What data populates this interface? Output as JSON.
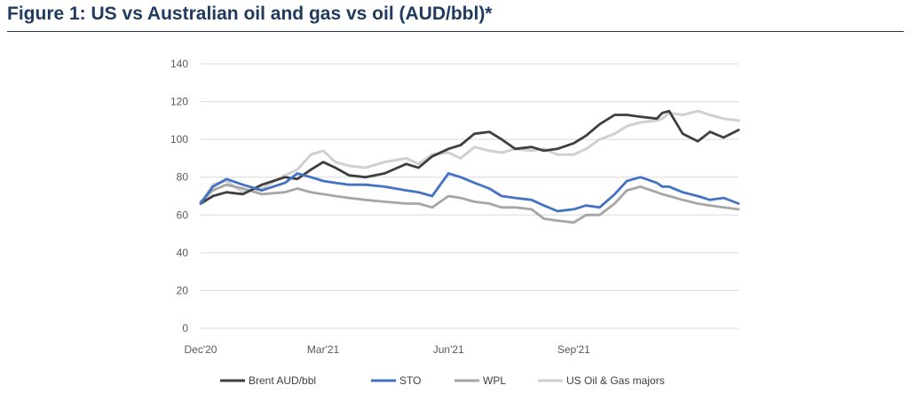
{
  "figure": {
    "title": "Figure 1: US vs Australian oil and gas vs oil (AUD/bbl)*"
  },
  "chart_data": {
    "type": "line",
    "title": "Figure 1: US vs Australian oil and gas vs oil (AUD/bbl)*",
    "xlabel": "",
    "ylabel": "",
    "ylim": [
      0,
      140
    ],
    "y_ticks": [
      "0",
      "20",
      "40",
      "60",
      "80",
      "100",
      "120",
      "140"
    ],
    "x_ticks": [
      "Dec'20",
      "Mar'21",
      "Jun'21",
      "Sep'21"
    ],
    "xlim": [
      "2020-12-01",
      "2021-12-31"
    ],
    "grid": "horizontal",
    "legend_position": "bottom",
    "series": [
      {
        "name": "Brent AUD/bbl",
        "color": "#3f3f3f",
        "x": [
          "2020-12-01",
          "2020-12-10",
          "2020-12-20",
          "2021-01-01",
          "2021-01-15",
          "2021-02-01",
          "2021-02-10",
          "2021-02-20",
          "2021-03-01",
          "2021-03-10",
          "2021-03-20",
          "2021-04-01",
          "2021-04-15",
          "2021-05-01",
          "2021-05-10",
          "2021-05-20",
          "2021-06-01",
          "2021-06-10",
          "2021-06-20",
          "2021-07-01",
          "2021-07-10",
          "2021-07-20",
          "2021-08-01",
          "2021-08-10",
          "2021-08-20",
          "2021-09-01",
          "2021-09-10",
          "2021-09-20",
          "2021-10-01",
          "2021-10-10",
          "2021-10-20",
          "2021-11-01",
          "2021-11-05",
          "2021-11-10",
          "2021-11-20",
          "2021-12-01",
          "2021-12-10",
          "2021-12-20",
          "2021-12-31"
        ],
        "y": [
          66,
          70,
          72,
          71,
          76,
          80,
          79,
          84,
          88,
          85,
          81,
          80,
          82,
          87,
          85,
          91,
          95,
          97,
          103,
          104,
          100,
          95,
          96,
          94,
          95,
          98,
          102,
          108,
          113,
          113,
          112,
          111,
          114,
          115,
          103,
          99,
          104,
          101,
          105
        ]
      },
      {
        "name": "STO",
        "color": "#4472c4",
        "x": [
          "2020-12-01",
          "2020-12-10",
          "2020-12-20",
          "2021-01-01",
          "2021-01-15",
          "2021-02-01",
          "2021-02-10",
          "2021-02-20",
          "2021-03-01",
          "2021-03-10",
          "2021-03-20",
          "2021-04-01",
          "2021-04-15",
          "2021-05-01",
          "2021-05-10",
          "2021-05-20",
          "2021-06-01",
          "2021-06-10",
          "2021-06-20",
          "2021-07-01",
          "2021-07-10",
          "2021-07-20",
          "2021-08-01",
          "2021-08-10",
          "2021-08-20",
          "2021-09-01",
          "2021-09-10",
          "2021-09-20",
          "2021-10-01",
          "2021-10-10",
          "2021-10-20",
          "2021-11-01",
          "2021-11-05",
          "2021-11-10",
          "2021-11-20",
          "2021-12-01",
          "2021-12-10",
          "2021-12-20",
          "2021-12-31"
        ],
        "y": [
          66,
          75,
          79,
          76,
          73,
          77,
          82,
          80,
          78,
          77,
          76,
          76,
          75,
          73,
          72,
          70,
          82,
          80,
          77,
          74,
          70,
          69,
          68,
          65,
          62,
          63,
          65,
          64,
          71,
          78,
          80,
          77,
          75,
          75,
          72,
          70,
          68,
          69,
          66
        ]
      },
      {
        "name": "WPL",
        "color": "#a6a6a6",
        "x": [
          "2020-12-01",
          "2020-12-10",
          "2020-12-20",
          "2021-01-01",
          "2021-01-15",
          "2021-02-01",
          "2021-02-10",
          "2021-02-20",
          "2021-03-01",
          "2021-03-10",
          "2021-03-20",
          "2021-04-01",
          "2021-04-15",
          "2021-05-01",
          "2021-05-10",
          "2021-05-20",
          "2021-06-01",
          "2021-06-10",
          "2021-06-20",
          "2021-07-01",
          "2021-07-10",
          "2021-07-20",
          "2021-08-01",
          "2021-08-10",
          "2021-08-20",
          "2021-09-01",
          "2021-09-10",
          "2021-09-20",
          "2021-10-01",
          "2021-10-10",
          "2021-10-20",
          "2021-11-01",
          "2021-11-05",
          "2021-11-10",
          "2021-11-20",
          "2021-12-01",
          "2021-12-10",
          "2021-12-20",
          "2021-12-31"
        ],
        "y": [
          67,
          73,
          76,
          74,
          71,
          72,
          74,
          72,
          71,
          70,
          69,
          68,
          67,
          66,
          66,
          64,
          70,
          69,
          67,
          66,
          64,
          64,
          63,
          58,
          57,
          56,
          60,
          60,
          66,
          73,
          75,
          72,
          71,
          70,
          68,
          66,
          65,
          64,
          63
        ]
      },
      {
        "name": "US Oil & Gas majors",
        "color": "#d0d0d0",
        "x": [
          "2020-12-01",
          "2020-12-10",
          "2020-12-20",
          "2021-01-01",
          "2021-01-15",
          "2021-02-01",
          "2021-02-10",
          "2021-02-20",
          "2021-03-01",
          "2021-03-10",
          "2021-03-20",
          "2021-04-01",
          "2021-04-15",
          "2021-05-01",
          "2021-05-10",
          "2021-05-20",
          "2021-06-01",
          "2021-06-10",
          "2021-06-20",
          "2021-07-01",
          "2021-07-10",
          "2021-07-20",
          "2021-08-01",
          "2021-08-10",
          "2021-08-20",
          "2021-09-01",
          "2021-09-10",
          "2021-09-20",
          "2021-10-01",
          "2021-10-10",
          "2021-10-20",
          "2021-11-01",
          "2021-11-05",
          "2021-11-10",
          "2021-11-20",
          "2021-12-01",
          "2021-12-10",
          "2021-12-20",
          "2021-12-31"
        ],
        "y": [
          66,
          76,
          78,
          72,
          74,
          81,
          84,
          92,
          94,
          88,
          86,
          85,
          88,
          90,
          87,
          92,
          93,
          90,
          96,
          94,
          93,
          95,
          94,
          95,
          92,
          92,
          95,
          100,
          103,
          107,
          109,
          110,
          111,
          114,
          113,
          115,
          113,
          111,
          110
        ]
      }
    ]
  }
}
